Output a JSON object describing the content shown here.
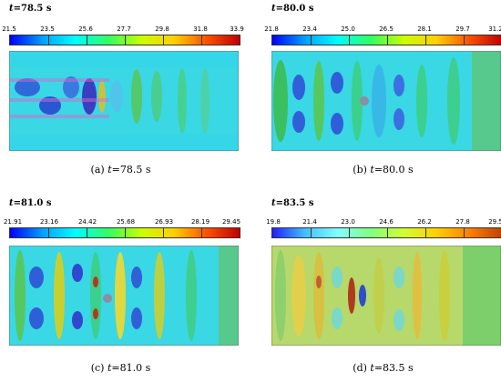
{
  "panels": [
    {
      "key": "a",
      "title_var": "t",
      "title_val": "=78.5 s",
      "ticks": [
        "21.5",
        "23.5",
        "25.6",
        "27.7",
        "29.8",
        "31.8",
        "33.9"
      ],
      "caption_label": "(a)",
      "caption_var": "t",
      "caption_val": "=78.5 s"
    },
    {
      "key": "b",
      "title_var": "t",
      "title_val": "=80.0 s",
      "ticks": [
        "21.8",
        "23.4",
        "25.0",
        "26.5",
        "28.1",
        "29.7",
        "31.2"
      ],
      "caption_label": "(b)",
      "caption_var": "t",
      "caption_val": "=80.0 s"
    },
    {
      "key": "c",
      "title_var": "t",
      "title_val": "=81.0 s",
      "ticks": [
        "21.91",
        "23.16",
        "24.42",
        "25.68",
        "26.93",
        "28.19",
        "29.45"
      ],
      "caption_label": "(c)",
      "caption_var": "t",
      "caption_val": "=81.0 s"
    },
    {
      "key": "d",
      "title_var": "t",
      "title_val": "=83.5 s",
      "ticks": [
        "19.8",
        "21.4",
        "23.0",
        "24.6",
        "26.2",
        "27.8",
        "29.5"
      ],
      "caption_label": "(d)",
      "caption_var": "t",
      "caption_val": "=83.5 s"
    }
  ],
  "colors": {
    "cold": "#2233cc",
    "cyan": "#33ddee",
    "green": "#55cc55",
    "yellow": "#e8e030",
    "hot": "#b03020"
  }
}
